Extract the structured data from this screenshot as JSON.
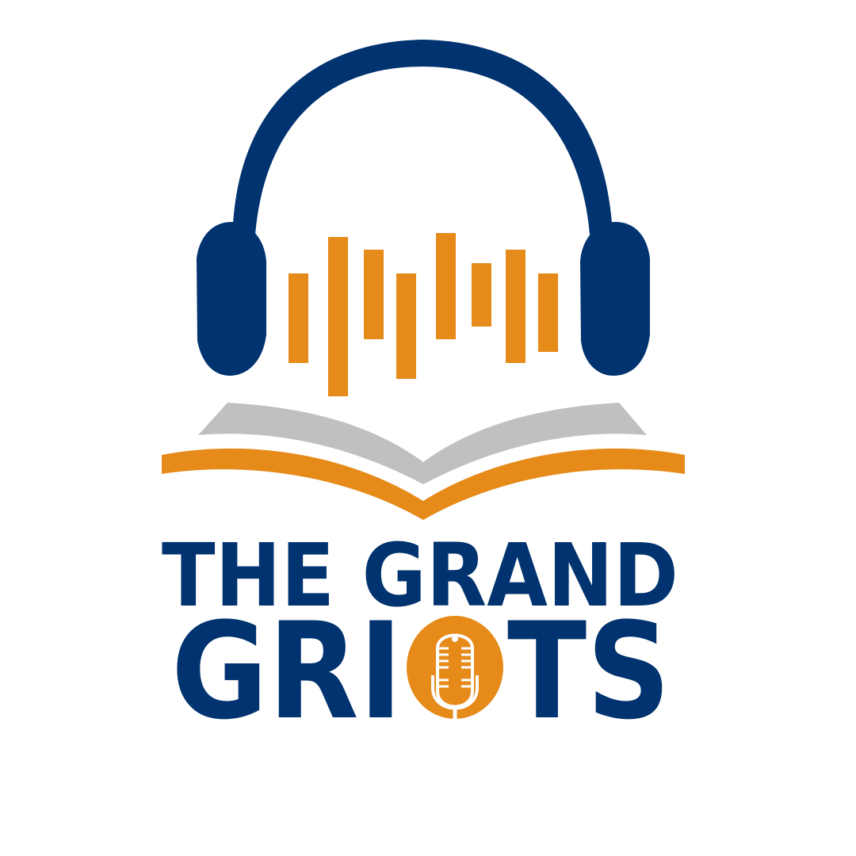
{
  "logo": {
    "name": "The Grand Griots",
    "wordmark_line1": "THE GRAND",
    "wordmark_line2": "GRIOTS",
    "icons": [
      "headphones-icon",
      "sound-wave-icon",
      "open-book-icon",
      "microphone-icon"
    ]
  },
  "colors": {
    "navy": "#00336f",
    "orange": "#e68a19",
    "gray": "#c0c0c0",
    "background": "#ffffff"
  }
}
